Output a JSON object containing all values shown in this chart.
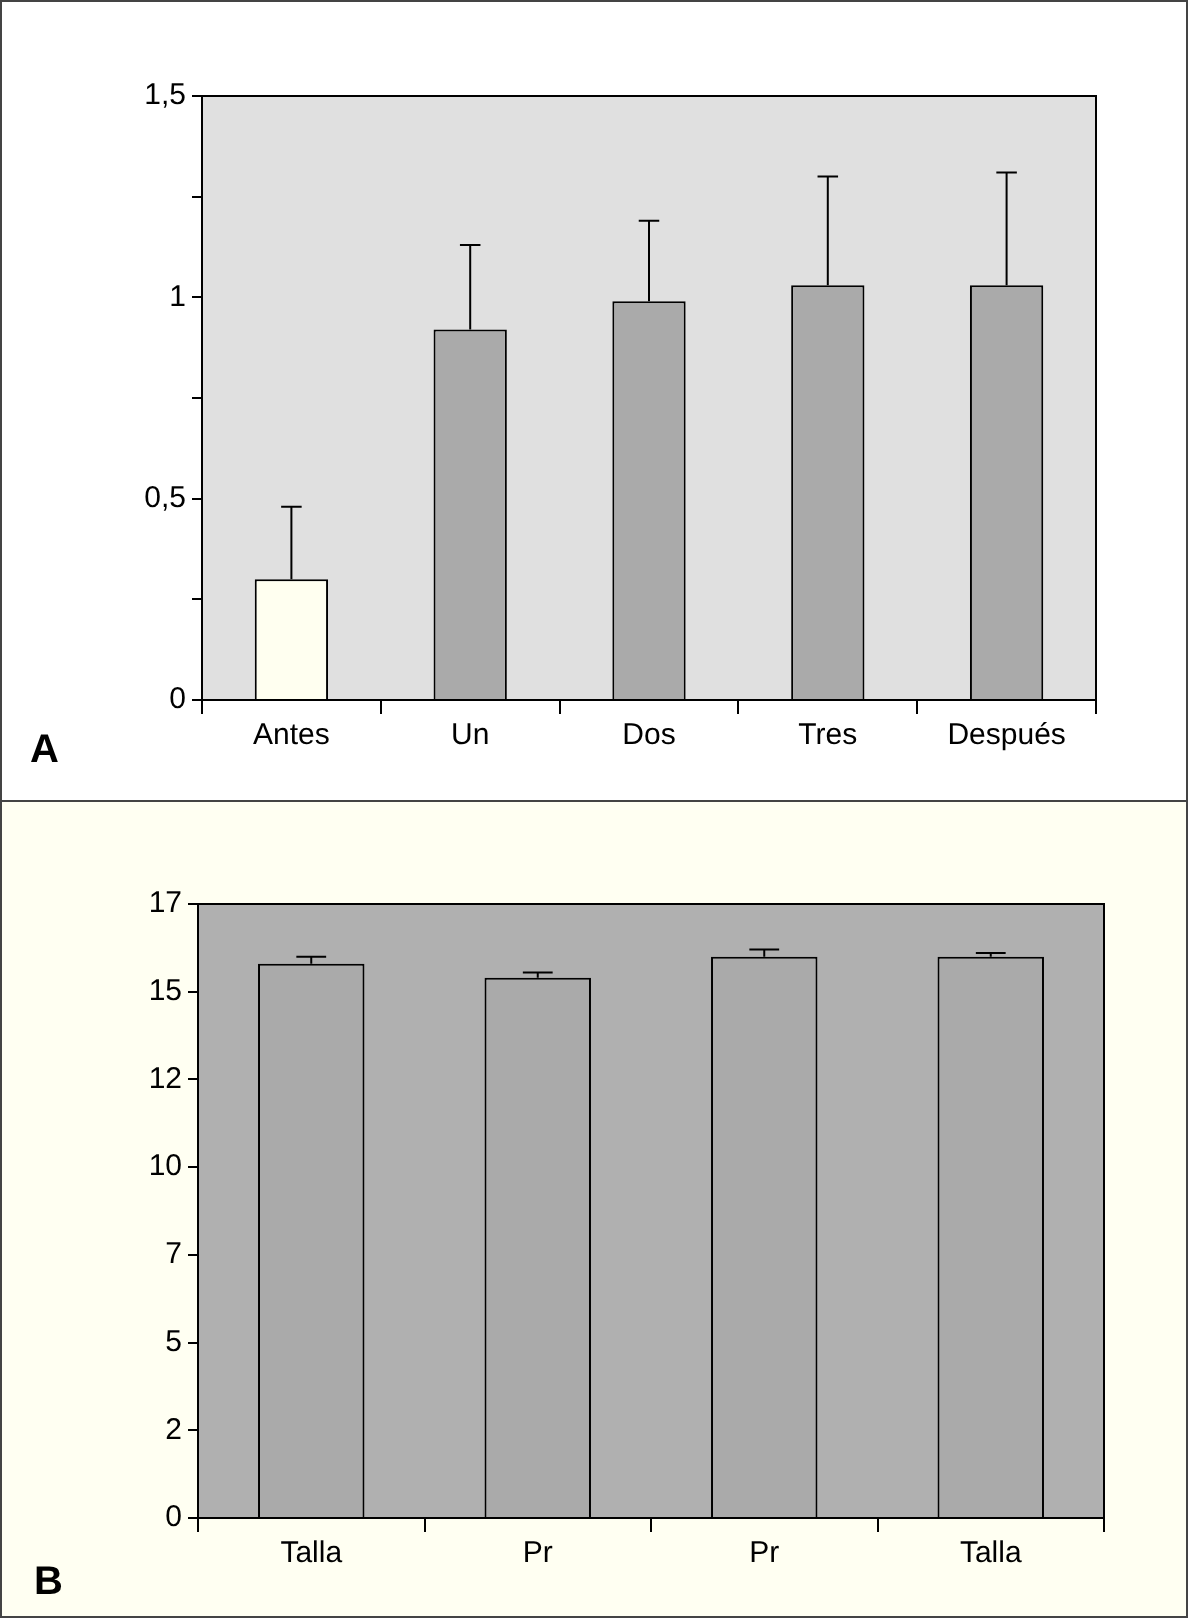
{
  "chart_data": [
    {
      "type": "bar",
      "categories": [
        "Antes",
        "Un",
        "Dos",
        "Tres",
        "Después"
      ],
      "values": [
        0.3,
        0.92,
        0.99,
        1.03,
        1.03
      ],
      "colors": [
        "#fffff0",
        "#aaaaaa",
        "#aaaaaa",
        "#aaaaaa",
        "#aaaaaa"
      ],
      "errors": [
        [
          0.3,
          0.48
        ],
        [
          0.92,
          1.13
        ],
        [
          0.99,
          1.19
        ],
        [
          1.03,
          1.3
        ],
        [
          1.03,
          1.31
        ]
      ],
      "ylim": [
        0,
        1.5
      ],
      "yticks": [
        0,
        {
          "value": 0.25,
          "label": null
        },
        {
          "value": 0.5,
          "label": "0,5"
        },
        {
          "value": 0.75,
          "label": null
        },
        1,
        {
          "value": 1.25,
          "label": null
        },
        {
          "value": 1.5,
          "label": "1,5"
        }
      ],
      "annotations": [
        "A"
      ]
    },
    {
      "type": "bar",
      "categories": [
        "Talla",
        "Pr",
        "Pr",
        "Talla"
      ],
      "values": [
        15.8,
        15.4,
        16.0,
        16.0
      ],
      "colors": [
        "#aaaaaa",
        "#aaaaaa",
        "#aaaaaa",
        "#aaaaaa"
      ],
      "errors": [
        [
          15.8,
          16.0
        ],
        [
          15.4,
          15.55
        ],
        [
          16.0,
          16.2
        ],
        [
          16.0,
          16.1
        ]
      ],
      "ylim": [
        0,
        17.5
      ],
      "yticks": [
        0,
        {
          "value": 2.5,
          "label": "2"
        },
        5,
        {
          "value": 7.5,
          "label": "7"
        },
        10,
        {
          "value": 12.5,
          "label": "12"
        },
        15,
        {
          "value": 17.5,
          "label": "17"
        }
      ],
      "annotations": [
        "B"
      ]
    }
  ]
}
